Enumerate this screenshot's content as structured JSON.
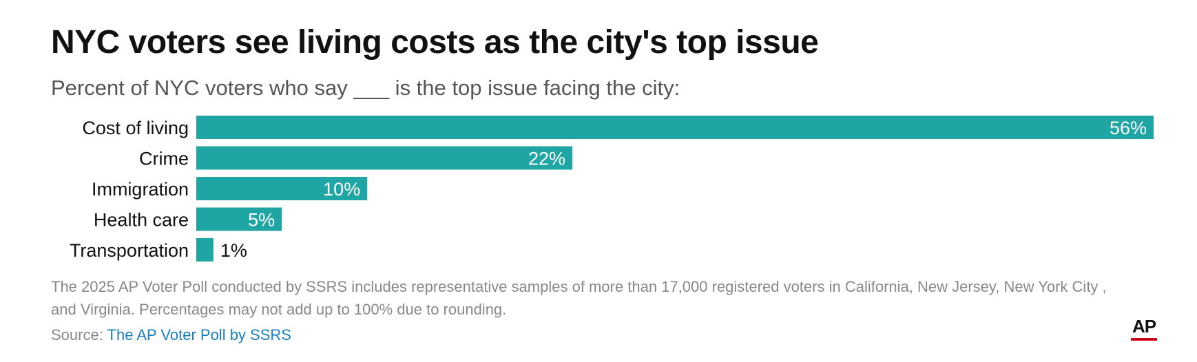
{
  "chart_data": {
    "type": "bar",
    "orientation": "horizontal",
    "title": "NYC voters see living costs as the city's top issue",
    "subtitle": "Percent of NYC voters who say ___ is the top issue facing the city:",
    "categories": [
      "Cost of living",
      "Crime",
      "Immigration",
      "Health care",
      "Transportation"
    ],
    "values": [
      56,
      22,
      10,
      5,
      1
    ],
    "value_labels": [
      "56%",
      "22%",
      "10%",
      "5%",
      "1%"
    ],
    "xlim": [
      0,
      56
    ],
    "grid": false,
    "bar_color": "#1fa6a4",
    "inside_label_color": "#ffffff",
    "outside_label_color": "#111111"
  },
  "footnote": "The 2025 AP Voter Poll conducted by SSRS includes representative samples of more than 17,000 registered voters in California, New Jersey, New York City , and Virginia. Percentages may not add up to 100% due to rounding.",
  "source": {
    "prefix": "Source: ",
    "link_text": "The AP Voter Poll by SSRS"
  },
  "logo": {
    "text": "AP"
  }
}
